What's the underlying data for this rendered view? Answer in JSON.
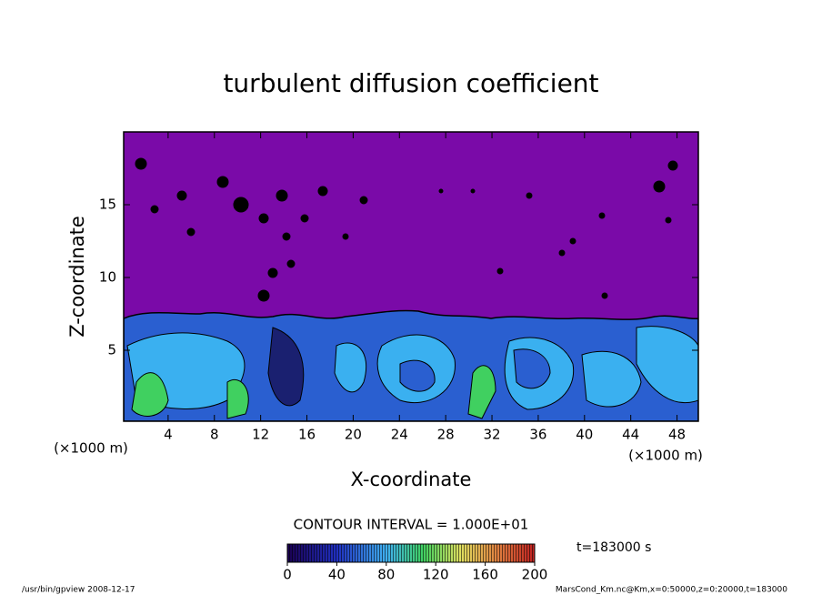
{
  "chart_data": {
    "type": "contour",
    "title": "turbulent diffusion coefficient",
    "x_label": "X-coordinate",
    "y_label": "Z-coordinate",
    "x_unit": "(×1000 m)",
    "y_unit": "(×1000 m)",
    "xlim": [
      0,
      50
    ],
    "ylim": [
      0,
      20
    ],
    "xticks": [
      4,
      8,
      12,
      16,
      20,
      24,
      28,
      32,
      36,
      40,
      44,
      48
    ],
    "yticks": [
      5,
      10,
      15
    ],
    "contour_interval": "CONTOUR INTERVAL = 1.000E+01",
    "colorbar": {
      "clim": [
        0,
        200
      ],
      "ticks": [
        0,
        40,
        80,
        120,
        160,
        200
      ]
    },
    "time_label": "t=183000 s",
    "footer_left": "/usr/bin/gpview  2008-12-17",
    "footer_right": "MarsCond_Km.nc@Km,x=0:50000,z=0:20000,t=183000"
  }
}
